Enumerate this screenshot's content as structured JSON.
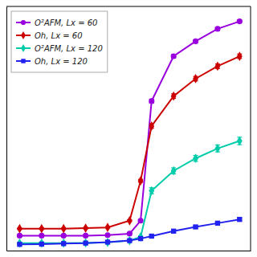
{
  "chart_data": {
    "type": "line",
    "x": [
      0.1,
      0.15,
      0.2,
      0.25,
      0.3,
      0.35,
      0.375,
      0.4,
      0.45,
      0.5,
      0.55,
      0.6
    ],
    "series": [
      {
        "name": "O²AFM, Lx = 60",
        "color": "#9900DD",
        "marker": "circle",
        "values": [
          0.04,
          0.04,
          0.04,
          0.04,
          0.042,
          0.048,
          0.1,
          0.58,
          0.76,
          0.82,
          0.87,
          0.9
        ],
        "errors": [
          0.002,
          0.002,
          0.002,
          0.002,
          0.002,
          0.002,
          0.004,
          0.008,
          0.007,
          0.006,
          0.006,
          0.006
        ]
      },
      {
        "name": "Oh, Lx = 60",
        "color": "#CC0000",
        "marker": "diamond",
        "values": [
          0.068,
          0.068,
          0.068,
          0.07,
          0.073,
          0.1,
          0.26,
          0.48,
          0.6,
          0.67,
          0.72,
          0.76
        ],
        "errors": [
          0.003,
          0.003,
          0.003,
          0.003,
          0.003,
          0.004,
          0.006,
          0.009,
          0.009,
          0.009,
          0.009,
          0.009
        ]
      },
      {
        "name": "O²AFM, Lx = 120",
        "color": "#00CCAA",
        "marker": "diamond",
        "values": [
          0.01,
          0.01,
          0.01,
          0.011,
          0.013,
          0.02,
          0.035,
          0.22,
          0.3,
          0.35,
          0.39,
          0.42
        ],
        "errors": [
          0.002,
          0.002,
          0.002,
          0.002,
          0.002,
          0.003,
          0.004,
          0.012,
          0.012,
          0.012,
          0.014,
          0.015
        ]
      },
      {
        "name": "Oh, Lx = 120",
        "color": "#2222EE",
        "marker": "square",
        "values": [
          0.005,
          0.006,
          0.008,
          0.01,
          0.014,
          0.02,
          0.028,
          0.038,
          0.058,
          0.075,
          0.09,
          0.105
        ],
        "errors": [
          0.001,
          0.001,
          0.001,
          0.001,
          0.002,
          0.002,
          0.003,
          0.004,
          0.005,
          0.005,
          0.006,
          0.006
        ]
      }
    ],
    "xlim": [
      0.07,
      0.625
    ],
    "ylim": [
      -0.02,
      0.96
    ],
    "xticks": [],
    "yticks": [],
    "tick_labels": false,
    "grid": false,
    "legend": "upper left"
  }
}
